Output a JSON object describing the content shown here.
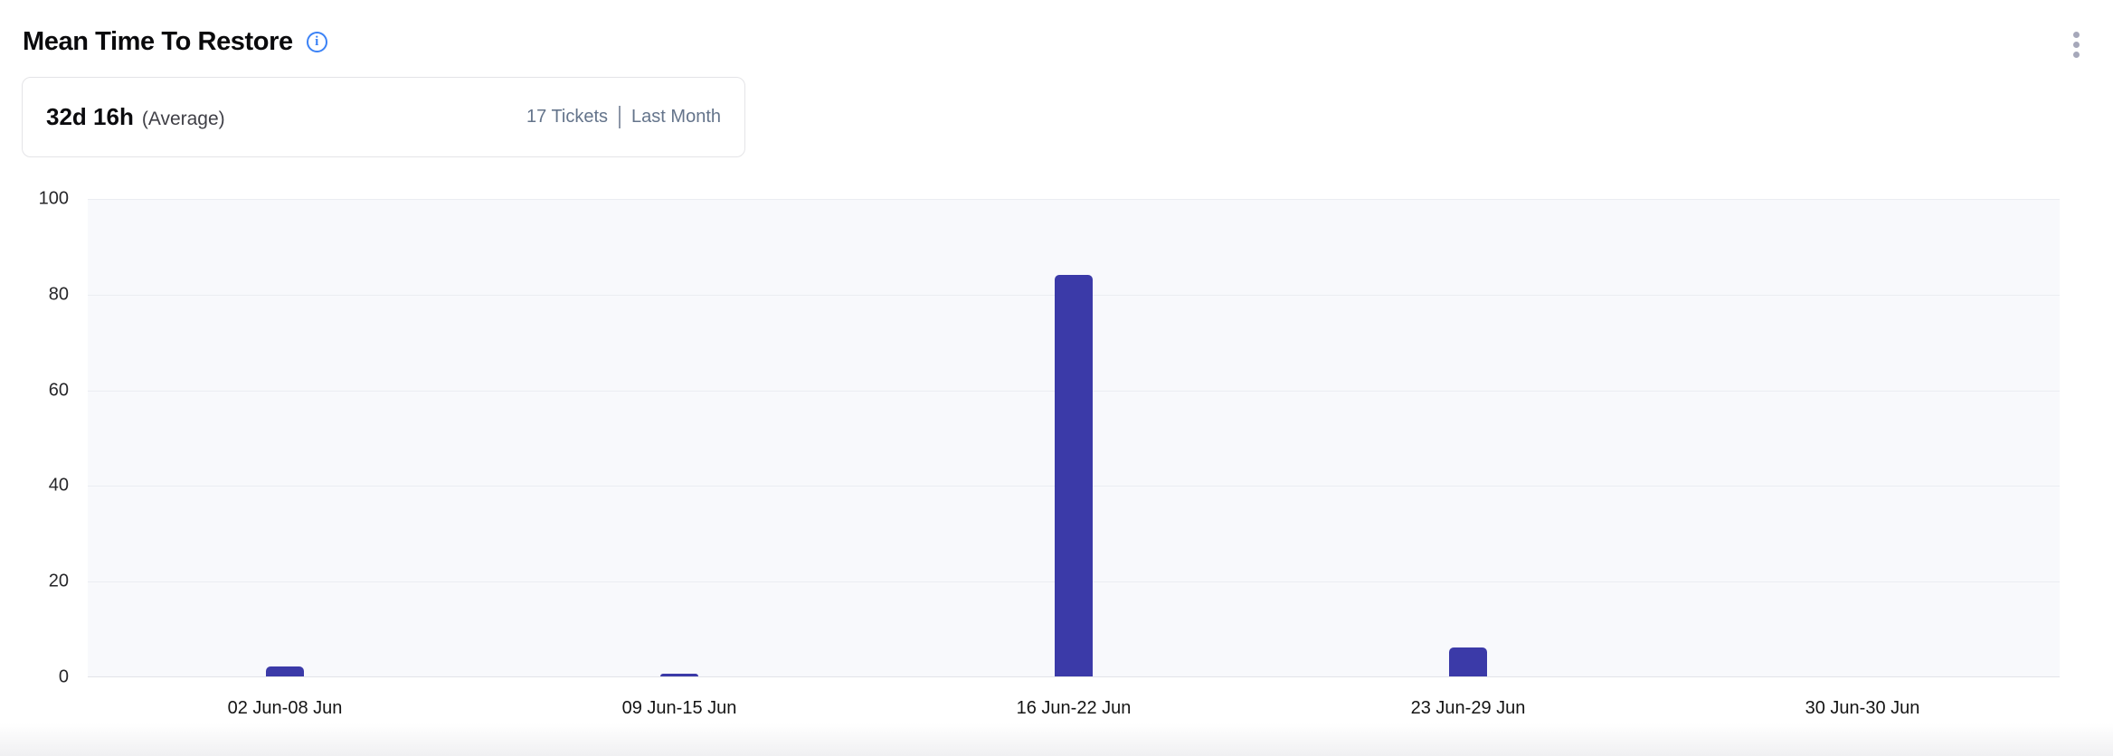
{
  "header": {
    "title": "Mean Time To Restore",
    "info_icon_glyph": "i"
  },
  "summary": {
    "value": "32d 16h",
    "value_label": "(Average)",
    "tickets": "17 Tickets",
    "period": "Last Month"
  },
  "colors": {
    "bar": "#3b3aa8",
    "accent_blue": "#3b82f6",
    "plot_background": "#f8f9fc",
    "gridline": "#ebedf2",
    "muted_text": "#64748b",
    "card_border": "#e4e4e7",
    "kebab_dot": "#a6a8ba"
  },
  "chart_data": {
    "type": "bar",
    "title": "Mean Time To Restore",
    "categories": [
      "02 Jun-08 Jun",
      "09 Jun-15 Jun",
      "16 Jun-22 Jun",
      "23 Jun-29 Jun",
      "30 Jun-30 Jun"
    ],
    "values": [
      2,
      0.5,
      84,
      6,
      0
    ],
    "xlabel": "",
    "ylabel": "",
    "ylim": [
      0,
      100
    ],
    "yticks": [
      0,
      20,
      40,
      60,
      80,
      100
    ],
    "grid": true,
    "legend": false,
    "bar_color": "#3b3aa8"
  }
}
